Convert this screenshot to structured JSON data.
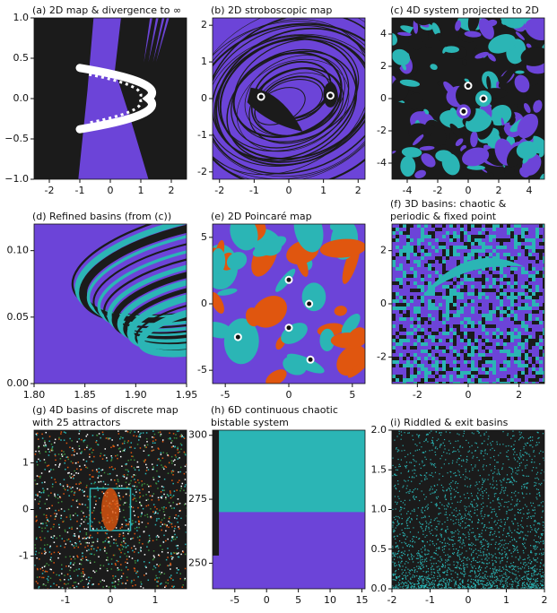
{
  "chart_data": [
    {
      "type": "heatmap",
      "title": [
        "(a) 2D map & divergence to ∞"
      ],
      "xlim": [
        -2.5,
        2.5
      ],
      "ylim": [
        -1,
        1
      ],
      "xticks": [
        -2,
        -1,
        0,
        1,
        2
      ],
      "yticks": [
        {
          "value": -1,
          "label": "−1.0"
        },
        {
          "value": -0.5,
          "label": "−0.5"
        },
        {
          "value": 0,
          "label": "0.0"
        },
        {
          "value": 0.5,
          "label": "0.5"
        },
        {
          "value": 1,
          "label": "1.0"
        }
      ],
      "colors": [
        "#1b1b1b",
        "#6c44d8"
      ]
    },
    {
      "type": "heatmap",
      "title": [
        "(b) 2D stroboscopic map"
      ],
      "xlim": [
        -2.2,
        2.2
      ],
      "ylim": [
        -2.2,
        2.2
      ],
      "xticks": [
        -2,
        -1,
        0,
        1,
        2
      ],
      "yticks": [
        -2,
        -1,
        0,
        1,
        2
      ],
      "colors": [
        "#6c44d8",
        "#1b1b1b"
      ],
      "points": {
        "x": [
          -0.8,
          1.2
        ],
        "y": [
          0.05,
          0.08
        ]
      }
    },
    {
      "type": "heatmap",
      "title": [
        "(c) 4D system projected to 2D"
      ],
      "xlim": [
        -5,
        5
      ],
      "ylim": [
        -5,
        5
      ],
      "xticks": [
        -4,
        -2,
        0,
        2,
        4
      ],
      "yticks": [
        -4,
        -2,
        0,
        2,
        4
      ],
      "colors": [
        "#1b1b1b",
        "#2bb5b5",
        "#6c44d8"
      ],
      "points": {
        "x": [
          0,
          1,
          -0.3
        ],
        "y": [
          0.8,
          0,
          -0.8
        ]
      }
    },
    {
      "type": "heatmap",
      "title": [
        "(d) Refined basins (from (c))"
      ],
      "xlim": [
        1.8,
        1.95
      ],
      "ylim": [
        0,
        0.12
      ],
      "xticks": [
        {
          "value": 1.8,
          "label": "1.80"
        },
        {
          "value": 1.85,
          "label": "1.85"
        },
        {
          "value": 1.9,
          "label": "1.90"
        },
        {
          "value": 1.95,
          "label": "1.95"
        }
      ],
      "yticks": [
        {
          "value": 0,
          "label": "0.00"
        },
        {
          "value": 0.05,
          "label": "0.05"
        },
        {
          "value": 0.1,
          "label": "0.10"
        }
      ],
      "colors": [
        "#6c44d8",
        "#1b1b1b",
        "#2bb5b5"
      ]
    },
    {
      "type": "heatmap",
      "title": [
        "(e) 2D Poincaré map"
      ],
      "xlim": [
        -6,
        6
      ],
      "ylim": [
        -6,
        6
      ],
      "xticks": [
        -5,
        0,
        5
      ],
      "yticks": [
        -5,
        0,
        5
      ],
      "colors": [
        "#6c44d8",
        "#e0560f",
        "#2bb5b5"
      ],
      "points": {
        "x": [
          0,
          1.6,
          -4,
          0,
          1.7
        ],
        "y": [
          1.8,
          0,
          -2.5,
          -1.8,
          -4.2
        ]
      }
    },
    {
      "type": "heatmap",
      "title": [
        "(f) 3D basins: chaotic &",
        "periodic & fixed point"
      ],
      "xlim": [
        -3,
        3
      ],
      "ylim": [
        -3,
        3
      ],
      "xticks": [
        -2,
        0,
        2
      ],
      "yticks": [
        -2,
        0,
        2
      ],
      "colors": [
        "#6c44d8",
        "#2bb5b5",
        "#1b1b1b"
      ]
    },
    {
      "type": "heatmap",
      "title": [
        "(g) 4D basins of discrete map",
        "with 25 attractors"
      ],
      "xlim": [
        -1.7,
        1.7
      ],
      "ylim": [
        -1.7,
        1.7
      ],
      "xticks": [
        -1,
        0,
        1
      ],
      "yticks": [
        -1,
        0,
        1
      ],
      "colors": [
        "#1b1b1b",
        "#e0560f",
        "#2bb5b5",
        "#ffffff",
        "#3a8a3a"
      ]
    },
    {
      "type": "heatmap",
      "title": [
        "(h) 6D continuous chaotic",
        "bistable system"
      ],
      "xlim": [
        -8.5,
        15.5
      ],
      "ylim": [
        240,
        302
      ],
      "xticks": [
        -5,
        0,
        5,
        10,
        15
      ],
      "yticks": [
        250,
        275,
        300
      ],
      "colors": [
        "#2bb5b5",
        "#6c44d8",
        "#1b1b1b"
      ]
    },
    {
      "type": "heatmap",
      "title": [
        "(i) Riddled & exit basins"
      ],
      "xlim": [
        -2,
        2
      ],
      "ylim": [
        0,
        2
      ],
      "xticks": [
        -2,
        -1,
        0,
        1,
        2
      ],
      "yticks": [
        {
          "value": 0,
          "label": "0.0"
        },
        {
          "value": 0.5,
          "label": "0.5"
        },
        {
          "value": 1,
          "label": "1.0"
        },
        {
          "value": 1.5,
          "label": "1.5"
        },
        {
          "value": 2,
          "label": "2.0"
        }
      ],
      "colors": [
        "#1b1b1b",
        "#2bb5b5"
      ]
    }
  ]
}
